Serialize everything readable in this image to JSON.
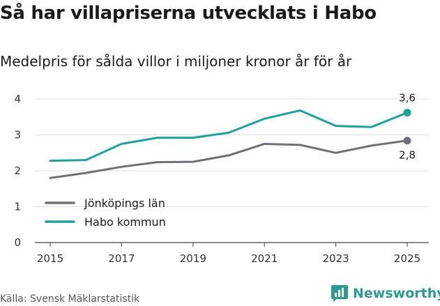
{
  "title": "Så har villapriserna utvecklats i Habo",
  "subtitle": "Medelpris för sålda villor i miljoner kronor år för år",
  "source": "Källa: Svensk Mäklarstatistik",
  "brand": {
    "name": "Newsworthy",
    "icon": "newsworthy-logo-icon",
    "color": "#2a9d8f"
  },
  "chart_data": {
    "type": "line",
    "x": [
      2015,
      2016,
      2017,
      2018,
      2019,
      2020,
      2021,
      2022,
      2023,
      2024,
      2025
    ],
    "x_ticks": [
      "2015",
      "2017",
      "2019",
      "2021",
      "2023",
      "2025"
    ],
    "y_ticks": [
      "0",
      "1",
      "2",
      "3",
      "4"
    ],
    "ylim": [
      0,
      4.2
    ],
    "grid": true,
    "legend_position": "bottom-left",
    "series": [
      {
        "name": "Jönköpings län",
        "color": "#6f6f78",
        "values": [
          1.8,
          1.94,
          2.11,
          2.24,
          2.25,
          2.43,
          2.75,
          2.72,
          2.5,
          2.7,
          2.84
        ],
        "end_label": "2,8"
      },
      {
        "name": "Habo kommun",
        "color": "#1aa39c",
        "values": [
          2.28,
          2.3,
          2.75,
          2.92,
          2.92,
          3.06,
          3.45,
          3.68,
          3.25,
          3.22,
          3.62
        ],
        "end_label": "3,6"
      }
    ]
  }
}
